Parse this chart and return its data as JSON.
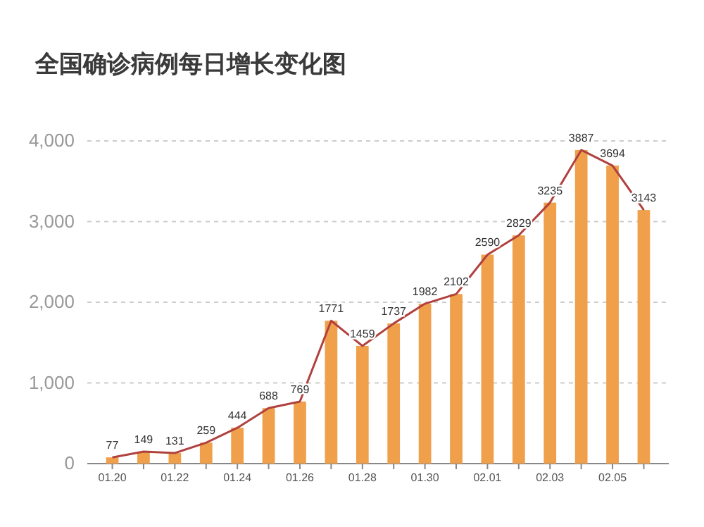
{
  "chart_data": {
    "type": "bar",
    "title": "全国确诊病例每日增长变化图",
    "categories": [
      "01.20",
      null,
      "01.22",
      null,
      "01.24",
      null,
      "01.26",
      null,
      "01.28",
      null,
      "01.30",
      null,
      "02.01",
      null,
      "02.03",
      null,
      "02.05",
      null
    ],
    "series": [
      {
        "color": "#f0a04b",
        "values": [
          77,
          149,
          131,
          259,
          444,
          688,
          769,
          1771,
          1459,
          1737,
          1982,
          2102,
          2590,
          2829,
          3235,
          3887,
          3694,
          3143
        ]
      },
      {
        "type": "line",
        "color": "#b0413e",
        "values": [
          77,
          149,
          131,
          259,
          444,
          688,
          769,
          1771,
          1459,
          1737,
          1982,
          2102,
          2590,
          2829,
          3235,
          3887,
          3694,
          3143
        ],
        "value_labels": [
          "77",
          "149",
          "131",
          "259",
          "444",
          "688",
          "769",
          "1771",
          "1459",
          "1737",
          "1982",
          "2102",
          "2590",
          "2829",
          "3235",
          "3887",
          "3694",
          "3143"
        ]
      }
    ],
    "ylim": [
      0,
      4000
    ],
    "yticks": [
      0,
      {
        "value": 1000,
        "label": "1,000"
      },
      {
        "value": 2000,
        "label": "2,000"
      },
      {
        "value": 3000,
        "label": "3,000"
      },
      {
        "value": 4000,
        "label": "4,000"
      }
    ],
    "grid": "y",
    "marker": "none",
    "line_style": "solid"
  }
}
